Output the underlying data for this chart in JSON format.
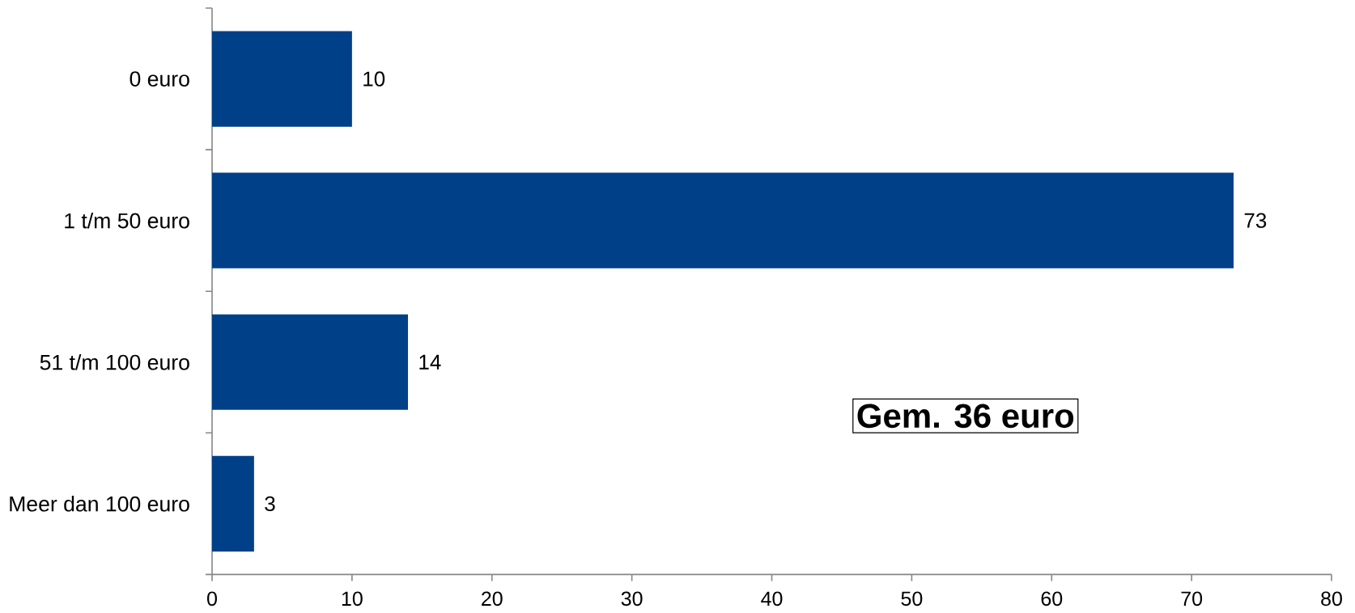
{
  "chart_data": {
    "type": "bar",
    "orientation": "horizontal",
    "categories": [
      "0 euro",
      "1 t/m 50 euro",
      "51 t/m 100 euro",
      "Meer dan 100 euro"
    ],
    "values": [
      10,
      73,
      14,
      3
    ],
    "color": "#004088",
    "data_labels": true,
    "xlim": [
      0,
      80
    ],
    "xticks": [
      0,
      10,
      20,
      30,
      40,
      50,
      60,
      70,
      80
    ],
    "annotations": [
      "Gem. 36 euro"
    ]
  }
}
